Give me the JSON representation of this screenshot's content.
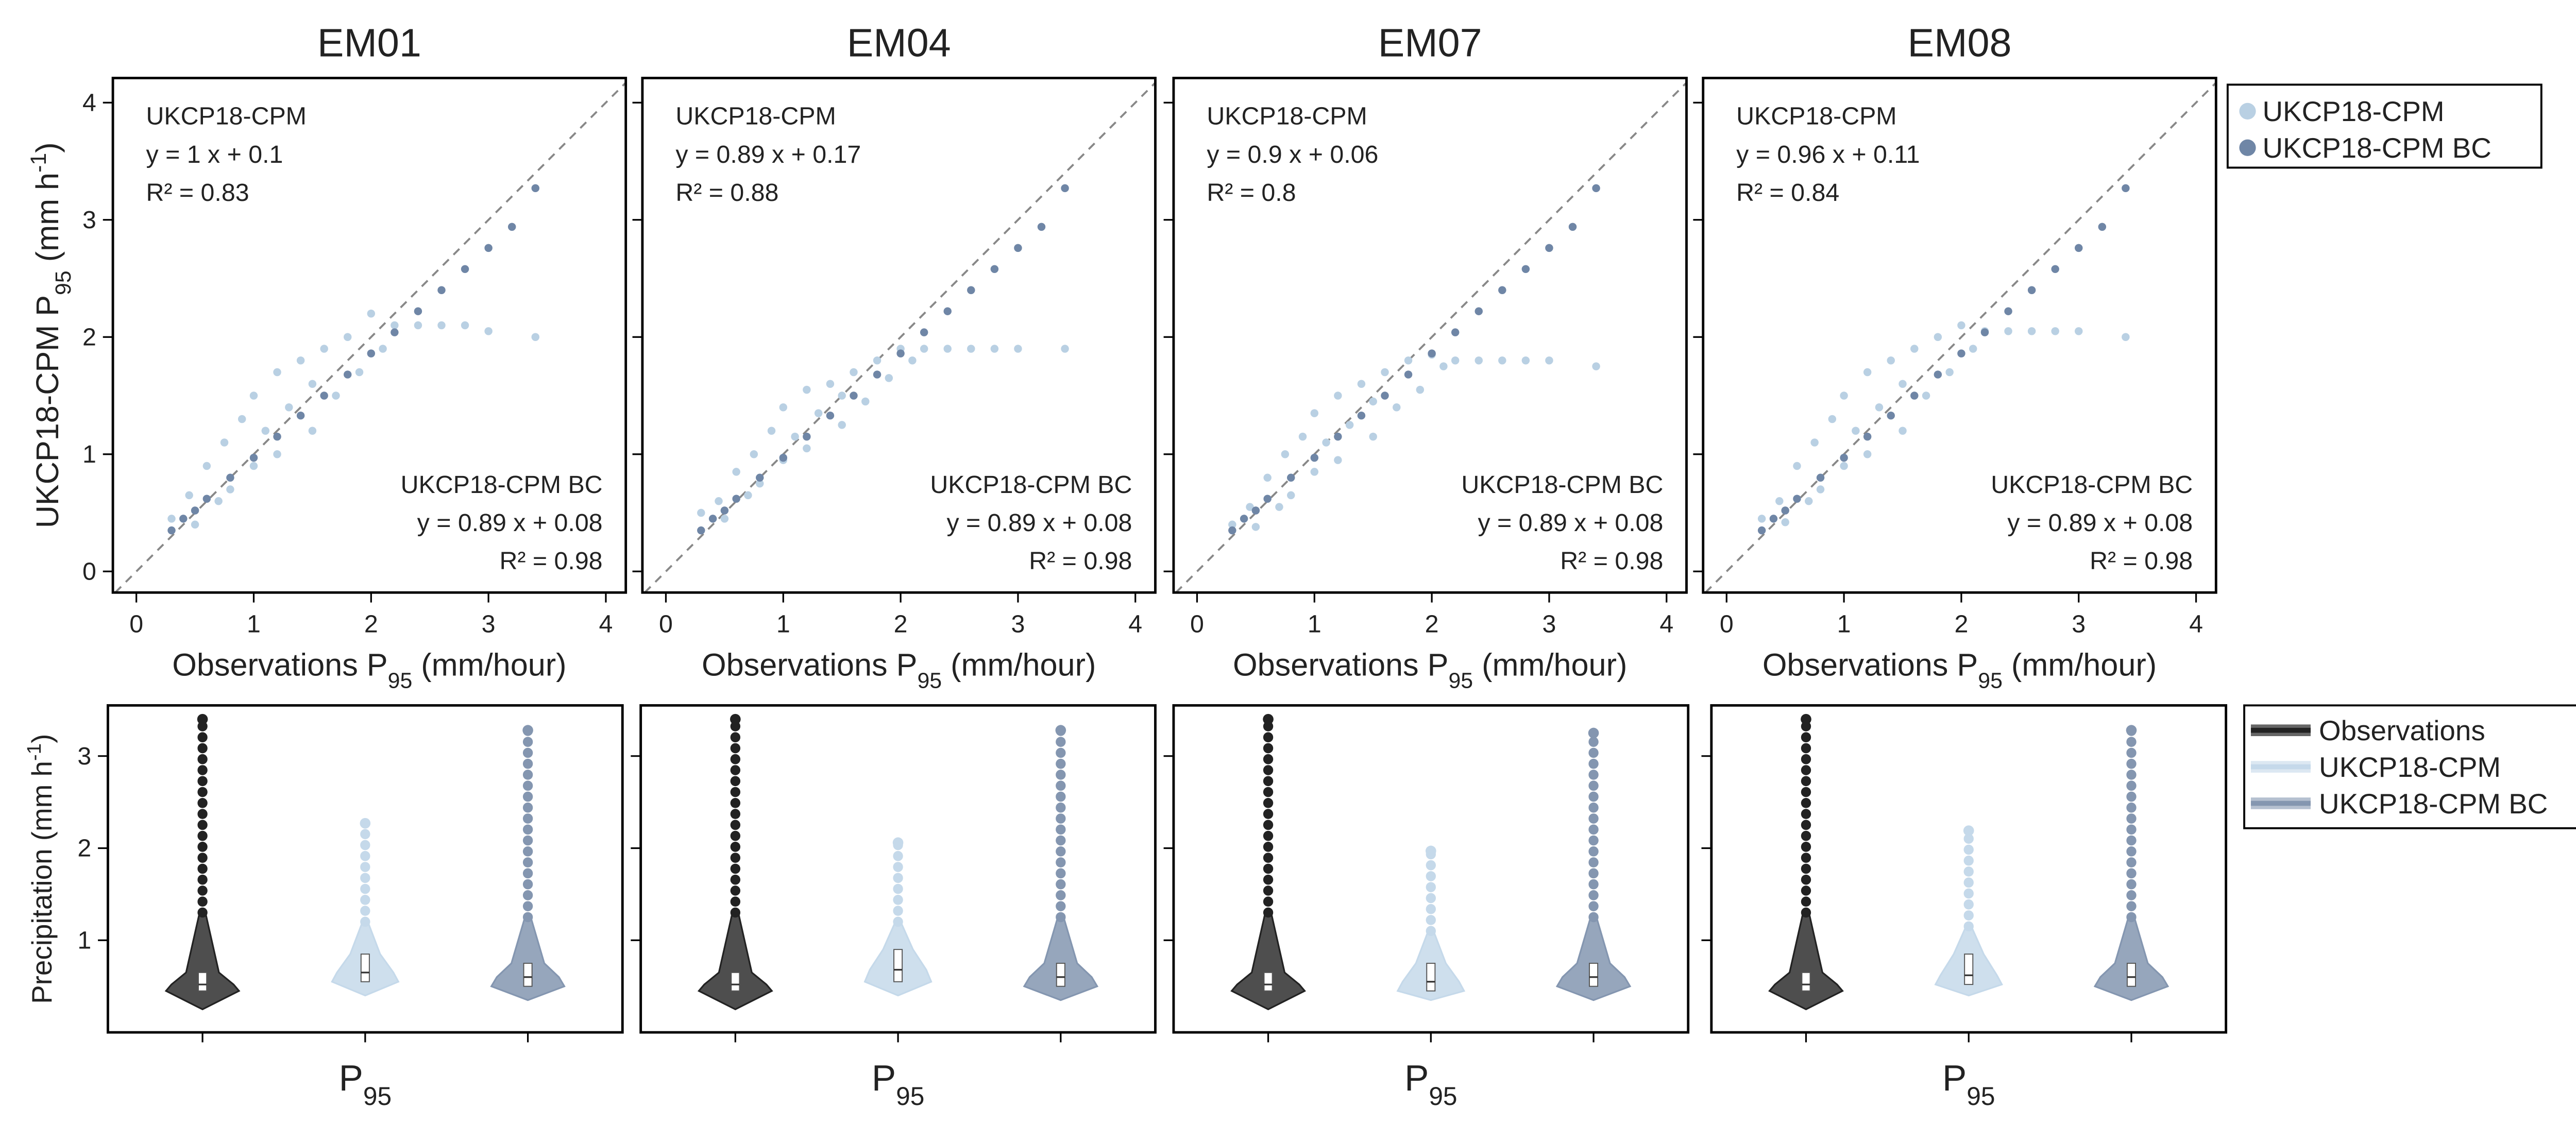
{
  "chart_data": [
    {
      "type": "scatter",
      "title": "EM01",
      "xlabel": [
        {
          "text": "Observations P"
        },
        {
          "text": "95",
          "sub": true
        },
        {
          "text": " (mm/hour)"
        }
      ],
      "ylabel": [
        {
          "text": "UKCP18-CPM P"
        },
        {
          "text": "95",
          "sub": true
        },
        {
          "text": " (mm h"
        },
        {
          "text": "-1",
          "sup": true
        },
        {
          "text": ")"
        }
      ],
      "xlim": [
        -0.2,
        4.17
      ],
      "ylim": [
        -0.18,
        4.21
      ],
      "xticks": [
        0,
        1,
        2,
        3,
        4
      ],
      "yticks": [
        0,
        1,
        2,
        3,
        4
      ],
      "annotations": {
        "cpm_equation": "y =  1 x +  0.1",
        "cpm_r2": "R² =  0.83",
        "bc_equation": "y =  0.89 x +  0.08",
        "bc_r2": "R² =  0.98"
      },
      "series": [
        {
          "name": "UKCP18-CPM",
          "color": "#b9d0e3",
          "x": [
            0.3,
            0.45,
            0.5,
            0.6,
            0.7,
            0.75,
            0.8,
            0.9,
            1.0,
            1.0,
            1.1,
            1.2,
            1.2,
            1.3,
            1.4,
            1.5,
            1.5,
            1.6,
            1.7,
            1.8,
            1.9,
            2.0,
            2.1,
            2.2,
            2.4,
            2.6,
            2.8,
            3.0,
            3.4
          ],
          "values": [
            0.45,
            0.65,
            0.4,
            0.9,
            0.6,
            1.1,
            0.7,
            1.3,
            0.9,
            1.5,
            1.2,
            1.0,
            1.7,
            1.4,
            1.8,
            1.2,
            1.6,
            1.9,
            1.5,
            2.0,
            1.7,
            2.2,
            1.9,
            2.1,
            2.1,
            2.1,
            2.1,
            2.05,
            2.0
          ]
        },
        {
          "name": "UKCP18-CPM BC",
          "color": "#6f86a6",
          "x": [
            0.3,
            0.4,
            0.5,
            0.6,
            0.8,
            1.0,
            1.2,
            1.4,
            1.6,
            1.8,
            2.0,
            2.2,
            2.4,
            2.6,
            2.8,
            3.0,
            3.2,
            3.4
          ],
          "values": [
            0.35,
            0.45,
            0.52,
            0.62,
            0.8,
            0.97,
            1.15,
            1.33,
            1.5,
            1.68,
            1.86,
            2.04,
            2.22,
            2.4,
            2.58,
            2.76,
            2.94,
            3.27
          ]
        }
      ]
    },
    {
      "type": "scatter",
      "title": "EM04",
      "xlabel": [
        {
          "text": "Observations P"
        },
        {
          "text": "95",
          "sub": true
        },
        {
          "text": " (mm/hour)"
        }
      ],
      "xlim": [
        -0.2,
        4.17
      ],
      "ylim": [
        -0.18,
        4.21
      ],
      "xticks": [
        0,
        1,
        2,
        3,
        4
      ],
      "yticks": [
        0,
        1,
        2,
        3,
        4
      ],
      "annotations": {
        "cpm_equation": "y =  0.89 x +  0.17",
        "cpm_r2": "R² =  0.88",
        "bc_equation": "y =  0.89 x +  0.08",
        "bc_r2": "R² =  0.98"
      },
      "series": [
        {
          "name": "UKCP18-CPM",
          "color": "#b9d0e3",
          "x": [
            0.3,
            0.45,
            0.5,
            0.6,
            0.7,
            0.75,
            0.8,
            0.9,
            1.0,
            1.0,
            1.1,
            1.2,
            1.2,
            1.3,
            1.4,
            1.5,
            1.5,
            1.6,
            1.7,
            1.8,
            1.9,
            2.0,
            2.1,
            2.2,
            2.4,
            2.6,
            2.8,
            3.0,
            3.4
          ],
          "values": [
            0.5,
            0.6,
            0.45,
            0.85,
            0.65,
            1.0,
            0.75,
            1.2,
            0.95,
            1.4,
            1.15,
            1.05,
            1.55,
            1.35,
            1.6,
            1.25,
            1.5,
            1.7,
            1.45,
            1.8,
            1.65,
            1.9,
            1.8,
            1.9,
            1.9,
            1.9,
            1.9,
            1.9,
            1.9
          ]
        },
        {
          "name": "UKCP18-CPM BC",
          "color": "#6f86a6",
          "x": [
            0.3,
            0.4,
            0.5,
            0.6,
            0.8,
            1.0,
            1.2,
            1.4,
            1.6,
            1.8,
            2.0,
            2.2,
            2.4,
            2.6,
            2.8,
            3.0,
            3.2,
            3.4
          ],
          "values": [
            0.35,
            0.45,
            0.52,
            0.62,
            0.8,
            0.97,
            1.15,
            1.33,
            1.5,
            1.68,
            1.86,
            2.04,
            2.22,
            2.4,
            2.58,
            2.76,
            2.94,
            3.27
          ]
        }
      ]
    },
    {
      "type": "scatter",
      "title": "EM07",
      "xlabel": [
        {
          "text": "Observations P"
        },
        {
          "text": "95",
          "sub": true
        },
        {
          "text": " (mm/hour)"
        }
      ],
      "xlim": [
        -0.2,
        4.17
      ],
      "ylim": [
        -0.18,
        4.21
      ],
      "xticks": [
        0,
        1,
        2,
        3,
        4
      ],
      "yticks": [
        0,
        1,
        2,
        3,
        4
      ],
      "annotations": {
        "cpm_equation": "y =  0.9 x +  0.06",
        "cpm_r2": "R² =  0.8",
        "bc_equation": "y =  0.89 x +  0.08",
        "bc_r2": "R² =  0.98"
      },
      "series": [
        {
          "name": "UKCP18-CPM",
          "color": "#b9d0e3",
          "x": [
            0.3,
            0.45,
            0.5,
            0.6,
            0.7,
            0.75,
            0.8,
            0.9,
            1.0,
            1.0,
            1.1,
            1.2,
            1.2,
            1.3,
            1.4,
            1.5,
            1.5,
            1.6,
            1.7,
            1.8,
            1.9,
            2.0,
            2.1,
            2.2,
            2.4,
            2.6,
            2.8,
            3.0,
            3.4
          ],
          "values": [
            0.4,
            0.55,
            0.38,
            0.8,
            0.55,
            1.0,
            0.65,
            1.15,
            0.85,
            1.35,
            1.1,
            0.95,
            1.5,
            1.25,
            1.6,
            1.15,
            1.45,
            1.7,
            1.4,
            1.8,
            1.55,
            1.85,
            1.75,
            1.8,
            1.8,
            1.8,
            1.8,
            1.8,
            1.75
          ]
        },
        {
          "name": "UKCP18-CPM BC",
          "color": "#6f86a6",
          "x": [
            0.3,
            0.4,
            0.5,
            0.6,
            0.8,
            1.0,
            1.2,
            1.4,
            1.6,
            1.8,
            2.0,
            2.2,
            2.4,
            2.6,
            2.8,
            3.0,
            3.2,
            3.4
          ],
          "values": [
            0.35,
            0.45,
            0.52,
            0.62,
            0.8,
            0.97,
            1.15,
            1.33,
            1.5,
            1.68,
            1.86,
            2.04,
            2.22,
            2.4,
            2.58,
            2.76,
            2.94,
            3.27
          ]
        }
      ]
    },
    {
      "type": "scatter",
      "title": "EM08",
      "xlabel": [
        {
          "text": "Observations P"
        },
        {
          "text": "95",
          "sub": true
        },
        {
          "text": " (mm/hour)"
        }
      ],
      "xlim": [
        -0.2,
        4.17
      ],
      "ylim": [
        -0.18,
        4.21
      ],
      "xticks": [
        0,
        1,
        2,
        3,
        4
      ],
      "yticks": [
        0,
        1,
        2,
        3,
        4
      ],
      "legend": "outside-right",
      "annotations": {
        "cpm_equation": "y =  0.96 x +  0.11",
        "cpm_r2": "R² =  0.84",
        "bc_equation": "y =  0.89 x +  0.08",
        "bc_r2": "R² =  0.98"
      },
      "series": [
        {
          "name": "UKCP18-CPM",
          "color": "#b9d0e3",
          "x": [
            0.3,
            0.45,
            0.5,
            0.6,
            0.7,
            0.75,
            0.8,
            0.9,
            1.0,
            1.0,
            1.1,
            1.2,
            1.2,
            1.3,
            1.4,
            1.5,
            1.5,
            1.6,
            1.7,
            1.8,
            1.9,
            2.0,
            2.1,
            2.2,
            2.4,
            2.6,
            2.8,
            3.0,
            3.4
          ],
          "values": [
            0.45,
            0.6,
            0.42,
            0.9,
            0.6,
            1.1,
            0.7,
            1.3,
            0.9,
            1.5,
            1.2,
            1.0,
            1.7,
            1.4,
            1.8,
            1.2,
            1.6,
            1.9,
            1.5,
            2.0,
            1.7,
            2.1,
            1.9,
            2.05,
            2.05,
            2.05,
            2.05,
            2.05,
            2.0
          ]
        },
        {
          "name": "UKCP18-CPM BC",
          "color": "#6f86a6",
          "x": [
            0.3,
            0.4,
            0.5,
            0.6,
            0.8,
            1.0,
            1.2,
            1.4,
            1.6,
            1.8,
            2.0,
            2.2,
            2.4,
            2.6,
            2.8,
            3.0,
            3.2,
            3.4
          ],
          "values": [
            0.35,
            0.45,
            0.52,
            0.62,
            0.8,
            0.97,
            1.15,
            1.33,
            1.5,
            1.68,
            1.86,
            2.04,
            2.22,
            2.4,
            2.58,
            2.76,
            2.94,
            3.27
          ]
        }
      ]
    },
    {
      "type": "violin",
      "xlabel": [
        {
          "text": "P"
        },
        {
          "text": "95",
          "sub": true
        }
      ],
      "ylabel": [
        {
          "text": "Precipitation (mm h"
        },
        {
          "text": "-1",
          "sup": true
        },
        {
          "text": ")"
        }
      ],
      "ylim": [
        0,
        3.55
      ],
      "yticks": [
        1,
        2,
        3
      ],
      "series": [
        {
          "color": "#222222",
          "min": 0.25,
          "q1": 0.45,
          "median": 0.52,
          "q3": 0.65,
          "whisker": 1.3,
          "max": 3.4
        },
        {
          "color": "#c5d9ea",
          "min": 0.4,
          "q1": 0.55,
          "median": 0.65,
          "q3": 0.85,
          "whisker": 1.2,
          "max": 2.27
        },
        {
          "color": "#8496b0",
          "min": 0.35,
          "q1": 0.5,
          "median": 0.6,
          "q3": 0.75,
          "whisker": 1.25,
          "max": 3.28
        }
      ]
    },
    {
      "type": "violin",
      "xlabel": [
        {
          "text": "P"
        },
        {
          "text": "95",
          "sub": true
        }
      ],
      "ylim": [
        0,
        3.55
      ],
      "yticks": [
        1,
        2,
        3
      ],
      "series": [
        {
          "color": "#222222",
          "min": 0.25,
          "q1": 0.45,
          "median": 0.52,
          "q3": 0.65,
          "whisker": 1.3,
          "max": 3.4
        },
        {
          "color": "#c5d9ea",
          "min": 0.4,
          "q1": 0.55,
          "median": 0.68,
          "q3": 0.9,
          "whisker": 1.2,
          "max": 2.06
        },
        {
          "color": "#8496b0",
          "min": 0.35,
          "q1": 0.5,
          "median": 0.6,
          "q3": 0.75,
          "whisker": 1.25,
          "max": 3.28
        }
      ]
    },
    {
      "type": "violin",
      "xlabel": [
        {
          "text": "P"
        },
        {
          "text": "95",
          "sub": true
        }
      ],
      "ylim": [
        0,
        3.55
      ],
      "yticks": [
        1,
        2,
        3
      ],
      "series": [
        {
          "color": "#222222",
          "min": 0.25,
          "q1": 0.45,
          "median": 0.52,
          "q3": 0.65,
          "whisker": 1.3,
          "max": 3.4
        },
        {
          "color": "#c5d9ea",
          "min": 0.35,
          "q1": 0.45,
          "median": 0.55,
          "q3": 0.75,
          "whisker": 1.1,
          "max": 1.97
        },
        {
          "color": "#8496b0",
          "min": 0.35,
          "q1": 0.5,
          "median": 0.6,
          "q3": 0.75,
          "whisker": 1.25,
          "max": 3.25
        }
      ]
    },
    {
      "type": "violin",
      "xlabel": [
        {
          "text": "P"
        },
        {
          "text": "95",
          "sub": true
        }
      ],
      "ylim": [
        0,
        3.55
      ],
      "yticks": [
        1,
        2,
        3
      ],
      "legend": "outside-right",
      "series": [
        {
          "name": "Observations",
          "color": "#222222",
          "min": 0.25,
          "q1": 0.45,
          "median": 0.52,
          "q3": 0.65,
          "whisker": 1.3,
          "max": 3.4
        },
        {
          "name": "UKCP18-CPM",
          "color": "#c5d9ea",
          "min": 0.4,
          "q1": 0.52,
          "median": 0.62,
          "q3": 0.85,
          "whisker": 1.15,
          "max": 2.19
        },
        {
          "name": "UKCP18-CPM BC",
          "color": "#8496b0",
          "min": 0.35,
          "q1": 0.5,
          "median": 0.6,
          "q3": 0.75,
          "whisker": 1.25,
          "max": 3.28
        }
      ]
    }
  ]
}
